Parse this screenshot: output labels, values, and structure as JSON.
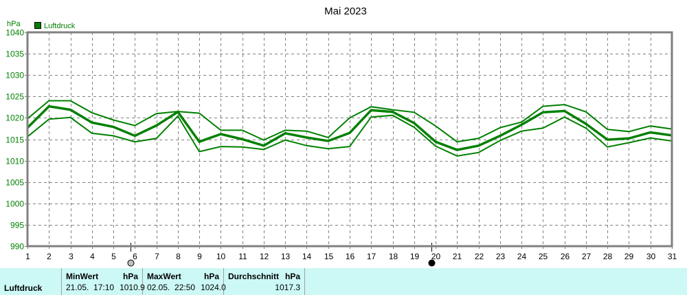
{
  "chart_data": {
    "type": "line",
    "title": "Mai 2023",
    "ylabel": "hPa",
    "xlabel": "",
    "ylim": [
      990,
      1040
    ],
    "yticks": [
      990,
      995,
      1000,
      1005,
      1010,
      1015,
      1020,
      1025,
      1030,
      1035,
      1040
    ],
    "x": [
      1,
      2,
      3,
      4,
      5,
      6,
      7,
      8,
      9,
      10,
      11,
      12,
      13,
      14,
      15,
      16,
      17,
      18,
      19,
      20,
      21,
      22,
      23,
      24,
      25,
      26,
      27,
      28,
      29,
      30,
      31
    ],
    "grid": true,
    "legend": [
      "Luftdruck"
    ],
    "legend_position": "top-left",
    "series": [
      {
        "name": "Luftdruck max",
        "values": [
          1019.8,
          1024.0,
          1024.0,
          1021.2,
          1019.5,
          1018.2,
          1021.0,
          1021.5,
          1021.1,
          1017.1,
          1017.1,
          1014.8,
          1017.1,
          1016.9,
          1015.4,
          1020.0,
          1022.6,
          1021.9,
          1021.3,
          1018.1,
          1014.4,
          1015.2,
          1017.7,
          1019.0,
          1022.7,
          1023.1,
          1021.4,
          1017.3,
          1016.8,
          1018.1,
          1017.4
        ]
      },
      {
        "name": "Luftdruck",
        "values": [
          1017.7,
          1022.7,
          1021.9,
          1018.9,
          1017.9,
          1015.8,
          1018.2,
          1021.4,
          1014.4,
          1016.2,
          1015.0,
          1013.5,
          1016.4,
          1015.4,
          1014.6,
          1016.5,
          1021.8,
          1021.4,
          1018.8,
          1014.4,
          1012.5,
          1013.5,
          1015.8,
          1018.4,
          1021.3,
          1021.6,
          1018.6,
          1014.9,
          1015.2,
          1016.6,
          1015.9
        ]
      },
      {
        "name": "Luftdruck min",
        "values": [
          1015.6,
          1019.7,
          1020.1,
          1016.4,
          1015.8,
          1014.4,
          1015.2,
          1020.4,
          1012.1,
          1013.3,
          1013.2,
          1012.6,
          1014.8,
          1013.5,
          1012.8,
          1013.3,
          1020.2,
          1020.6,
          1017.8,
          1013.4,
          1011.1,
          1011.9,
          1014.7,
          1016.9,
          1017.6,
          1020.2,
          1017.6,
          1013.2,
          1014.2,
          1015.3,
          1014.6
        ]
      }
    ],
    "annotations": [
      {
        "type": "moon-full",
        "x": 5.8
      },
      {
        "type": "moon-new",
        "x": 19.8
      }
    ]
  },
  "colors": {
    "line": "#008000",
    "axis": "#808080",
    "grid": "#808080",
    "stats_bg": "#ccf8f5"
  },
  "stats": {
    "row_label": "Luftdruck",
    "min": {
      "header": "MinWert",
      "unit": "hPa",
      "date": "21.05.",
      "time": "17:10",
      "value": "1010.9"
    },
    "max": {
      "header": "MaxWert",
      "unit": "hPa",
      "date": "02.05.",
      "time": "22:50",
      "value": "1024.0"
    },
    "avg": {
      "header": "Durchschnitt",
      "unit": "hPa",
      "value": "1017.3"
    }
  }
}
